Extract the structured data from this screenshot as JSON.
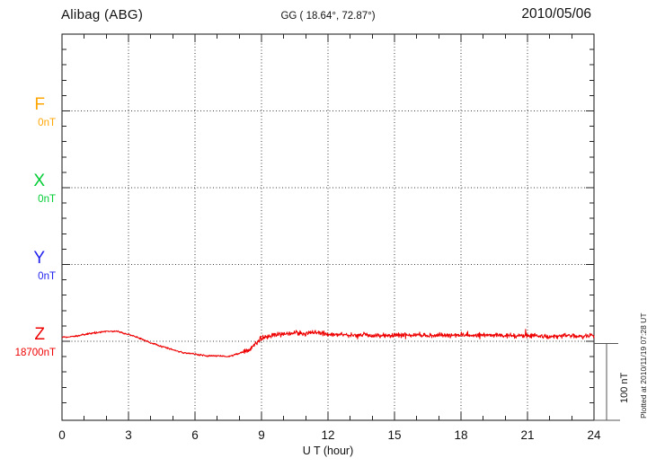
{
  "header": {
    "station": "Alibag (ABG)",
    "coordinates": "GG ( 18.64°,  72.87°)",
    "date": "2010/05/06"
  },
  "components": [
    {
      "label": "F",
      "value": "0nT",
      "color": "#ffa500"
    },
    {
      "label": "X",
      "value": "0nT",
      "color": "#00cc33"
    },
    {
      "label": "Y",
      "value": "0nT",
      "color": "#2222ee"
    },
    {
      "label": "Z",
      "value": "18700nT",
      "color": "#ee0000"
    }
  ],
  "x_axis": {
    "title": "U T (hour)",
    "tick_labels": [
      "0",
      "3",
      "6",
      "9",
      "12",
      "15",
      "18",
      "21",
      "24"
    ]
  },
  "scale_bar": {
    "label": "100 nT",
    "size_nT": 100
  },
  "footer": {
    "plotted_at": "Plotted at 2010/11/19 07:28 UT"
  },
  "chart_data": {
    "type": "line",
    "title": "Alibag (ABG) magnetogram, GG ( 18.64°, 72.87°), 2010/05/06",
    "xlabel": "U T (hour)",
    "x_range_hours": [
      0,
      24
    ],
    "x_major_tick_hours": 3,
    "x_minor_tick_hours": 1,
    "y_minor_tick_nT": 20,
    "baseline_spacing_nT": 100,
    "grid": "dotted at component baselines and every 3 hours",
    "legend_position": "left margin, one colored label per component",
    "components": [
      {
        "name": "F",
        "baseline_value_nT": 0,
        "color": "#ffa500",
        "trace": "missing"
      },
      {
        "name": "X",
        "baseline_value_nT": 0,
        "color": "#00cc33",
        "trace": "missing"
      },
      {
        "name": "Y",
        "baseline_value_nT": 0,
        "color": "#2222ee",
        "trace": "missing"
      },
      {
        "name": "Z",
        "baseline_value_nT": 18700,
        "color": "#ee0000",
        "trace": "present"
      }
    ],
    "z_series": {
      "start_hour": 0,
      "step_hours": 0.5,
      "delta_nT": [
        5,
        6,
        9,
        11,
        13,
        13,
        9,
        4,
        -2,
        -7,
        -11,
        -15,
        -17,
        -19,
        -19,
        -20,
        -16,
        -10,
        4,
        8,
        9,
        11,
        10,
        12,
        9,
        9,
        8,
        8,
        8,
        7,
        8,
        8,
        8,
        7,
        8,
        8,
        8,
        7,
        8,
        8,
        7,
        7,
        8,
        7,
        6,
        7,
        7,
        7,
        8
      ],
      "noise_nT": {
        "quiet_until_hour": 8.2,
        "quiet_amp": 1.1,
        "active_amp": 3.0
      }
    }
  }
}
